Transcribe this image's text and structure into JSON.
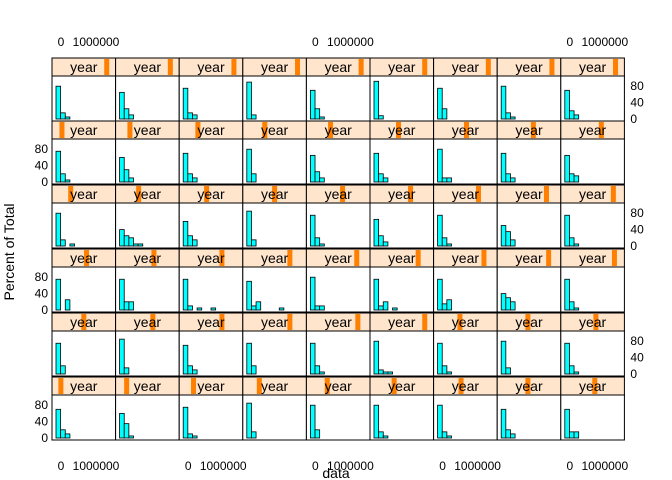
{
  "chart_data": {
    "type": "bar",
    "layout": {
      "columns": 9,
      "rows": 6
    },
    "xlabel": "data",
    "ylabel": "Percent of Total",
    "strip_label": "year",
    "x_tick_labels": [
      "0",
      "1000000"
    ],
    "y_tick_labels": [
      "0",
      "40",
      "80"
    ],
    "ylim": [
      0,
      100
    ],
    "colors": {
      "bar_fill": "#00ffff",
      "strip_bg": "#ffe5cc",
      "strip_indicator": "#ff7f00",
      "frame": "#000000"
    },
    "panels": [
      {
        "row": 0,
        "col": 0,
        "level": 0.92,
        "values": [
          80,
          15,
          5,
          0,
          0,
          0,
          0,
          0
        ]
      },
      {
        "row": 0,
        "col": 1,
        "level": 0.92,
        "values": [
          65,
          25,
          10,
          0,
          0,
          0,
          0,
          0
        ]
      },
      {
        "row": 0,
        "col": 2,
        "level": 0.92,
        "values": [
          75,
          15,
          10,
          0,
          0,
          0,
          0,
          0
        ]
      },
      {
        "row": 0,
        "col": 3,
        "level": 0.92,
        "values": [
          90,
          10,
          0,
          0,
          0,
          0,
          0,
          0
        ]
      },
      {
        "row": 0,
        "col": 4,
        "level": 0.92,
        "values": [
          70,
          25,
          5,
          0,
          0,
          0,
          0,
          0
        ]
      },
      {
        "row": 0,
        "col": 5,
        "level": 0.92,
        "values": [
          92,
          8,
          0,
          0,
          0,
          0,
          0,
          0
        ]
      },
      {
        "row": 0,
        "col": 6,
        "level": 0.92,
        "values": [
          75,
          25,
          0,
          0,
          0,
          0,
          0,
          0
        ]
      },
      {
        "row": 0,
        "col": 7,
        "level": 0.92,
        "values": [
          80,
          15,
          5,
          0,
          0,
          0,
          0,
          0
        ]
      },
      {
        "row": 0,
        "col": 8,
        "level": 0.92,
        "values": [
          70,
          20,
          10,
          0,
          0,
          0,
          0,
          0
        ]
      },
      {
        "row": 1,
        "col": 0,
        "level": 0.1,
        "values": [
          75,
          20,
          5,
          0,
          0,
          0,
          0,
          0
        ]
      },
      {
        "row": 1,
        "col": 1,
        "level": 0.18,
        "values": [
          60,
          30,
          10,
          0,
          0,
          0,
          0,
          0
        ]
      },
      {
        "row": 1,
        "col": 2,
        "level": 0.26,
        "values": [
          70,
          20,
          10,
          0,
          0,
          0,
          0,
          0
        ]
      },
      {
        "row": 1,
        "col": 3,
        "level": 0.32,
        "values": [
          80,
          20,
          0,
          0,
          0,
          0,
          0,
          0
        ]
      },
      {
        "row": 1,
        "col": 4,
        "level": 0.36,
        "values": [
          65,
          25,
          10,
          0,
          0,
          0,
          0,
          0
        ]
      },
      {
        "row": 1,
        "col": 5,
        "level": 0.44,
        "values": [
          70,
          20,
          10,
          0,
          0,
          0,
          0,
          0
        ]
      },
      {
        "row": 1,
        "col": 6,
        "level": 0.52,
        "values": [
          80,
          10,
          10,
          0,
          0,
          0,
          0,
          0
        ]
      },
      {
        "row": 1,
        "col": 7,
        "level": 0.58,
        "values": [
          70,
          20,
          10,
          0,
          0,
          0,
          0,
          0
        ]
      },
      {
        "row": 1,
        "col": 8,
        "level": 0.66,
        "values": [
          65,
          20,
          15,
          0,
          0,
          0,
          0,
          0
        ]
      },
      {
        "row": 2,
        "col": 0,
        "level": 0.26,
        "values": [
          80,
          15,
          0,
          5,
          0,
          0,
          0,
          0
        ]
      },
      {
        "row": 2,
        "col": 1,
        "level": 0.34,
        "values": [
          40,
          25,
          20,
          5,
          5,
          0,
          0,
          0
        ]
      },
      {
        "row": 2,
        "col": 2,
        "level": 0.42,
        "values": [
          60,
          25,
          15,
          0,
          0,
          0,
          0,
          0
        ]
      },
      {
        "row": 2,
        "col": 3,
        "level": 0.5,
        "values": [
          85,
          15,
          0,
          0,
          0,
          0,
          0,
          0
        ]
      },
      {
        "row": 2,
        "col": 4,
        "level": 0.58,
        "values": [
          75,
          20,
          5,
          0,
          0,
          0,
          0,
          0
        ]
      },
      {
        "row": 2,
        "col": 5,
        "level": 0.66,
        "values": [
          65,
          25,
          10,
          0,
          0,
          0,
          0,
          0
        ]
      },
      {
        "row": 2,
        "col": 6,
        "level": 0.74,
        "values": [
          75,
          20,
          5,
          0,
          0,
          0,
          0,
          0
        ]
      },
      {
        "row": 2,
        "col": 7,
        "level": 0.82,
        "values": [
          50,
          35,
          15,
          0,
          0,
          0,
          0,
          0
        ]
      },
      {
        "row": 2,
        "col": 8,
        "level": 0.88,
        "values": [
          75,
          20,
          5,
          0,
          0,
          0,
          0,
          0
        ]
      },
      {
        "row": 3,
        "col": 0,
        "level": 0.55,
        "values": [
          75,
          0,
          25,
          0,
          0,
          0,
          0,
          0
        ]
      },
      {
        "row": 3,
        "col": 1,
        "level": 0.62,
        "values": [
          75,
          20,
          20,
          0,
          0,
          0,
          0,
          0
        ]
      },
      {
        "row": 3,
        "col": 2,
        "level": 0.7,
        "values": [
          75,
          10,
          0,
          5,
          0,
          0,
          5,
          0
        ]
      },
      {
        "row": 3,
        "col": 3,
        "level": 0.78,
        "values": [
          70,
          10,
          20,
          0,
          0,
          0,
          0,
          5
        ]
      },
      {
        "row": 3,
        "col": 4,
        "level": 0.84,
        "values": [
          80,
          10,
          10,
          0,
          0,
          0,
          0,
          0
        ]
      },
      {
        "row": 3,
        "col": 5,
        "level": 0.8,
        "values": [
          75,
          10,
          20,
          0,
          5,
          0,
          0,
          0
        ]
      },
      {
        "row": 3,
        "col": 6,
        "level": 0.84,
        "values": [
          75,
          15,
          25,
          0,
          0,
          0,
          0,
          0
        ]
      },
      {
        "row": 3,
        "col": 7,
        "level": 0.86,
        "values": [
          40,
          30,
          20,
          0,
          0,
          0,
          0,
          0
        ]
      },
      {
        "row": 3,
        "col": 8,
        "level": 0.9,
        "values": [
          75,
          20,
          5,
          0,
          0,
          0,
          0,
          0
        ]
      },
      {
        "row": 4,
        "col": 0,
        "level": 0.5,
        "values": [
          75,
          20,
          0,
          0,
          0,
          0,
          0,
          0
        ]
      },
      {
        "row": 4,
        "col": 1,
        "level": 0.6,
        "values": [
          85,
          15,
          0,
          0,
          0,
          0,
          0,
          0
        ]
      },
      {
        "row": 4,
        "col": 2,
        "level": 0.7,
        "values": [
          70,
          20,
          10,
          0,
          0,
          0,
          0,
          0
        ]
      },
      {
        "row": 4,
        "col": 3,
        "level": 0.78,
        "values": [
          75,
          20,
          0,
          0,
          0,
          0,
          0,
          0
        ]
      },
      {
        "row": 4,
        "col": 4,
        "level": 0.86,
        "values": [
          75,
          20,
          5,
          0,
          0,
          0,
          0,
          0
        ]
      },
      {
        "row": 4,
        "col": 5,
        "level": 0.92,
        "values": [
          80,
          10,
          5,
          5,
          0,
          0,
          0,
          0
        ]
      },
      {
        "row": 4,
        "col": 6,
        "level": 0.4,
        "values": [
          75,
          20,
          5,
          0,
          0,
          0,
          0,
          0
        ]
      },
      {
        "row": 4,
        "col": 7,
        "level": 0.48,
        "values": [
          80,
          15,
          0,
          0,
          0,
          0,
          0,
          0
        ]
      },
      {
        "row": 4,
        "col": 8,
        "level": 0.56,
        "values": [
          75,
          20,
          5,
          0,
          0,
          0,
          0,
          0
        ]
      },
      {
        "row": 5,
        "col": 0,
        "level": 0.08,
        "values": [
          70,
          20,
          10,
          0,
          0,
          0,
          0,
          0
        ]
      },
      {
        "row": 5,
        "col": 1,
        "level": 0.12,
        "values": [
          60,
          35,
          5,
          0,
          0,
          0,
          0,
          0
        ]
      },
      {
        "row": 5,
        "col": 2,
        "level": 0.18,
        "values": [
          75,
          10,
          5,
          0,
          0,
          0,
          0,
          0
        ]
      },
      {
        "row": 5,
        "col": 3,
        "level": 0.22,
        "values": [
          85,
          15,
          0,
          0,
          0,
          0,
          0,
          0
        ]
      },
      {
        "row": 5,
        "col": 4,
        "level": 0.3,
        "values": [
          80,
          20,
          0,
          0,
          0,
          0,
          0,
          0
        ]
      },
      {
        "row": 5,
        "col": 5,
        "level": 0.36,
        "values": [
          80,
          15,
          5,
          0,
          0,
          0,
          0,
          0
        ]
      },
      {
        "row": 5,
        "col": 6,
        "level": 0.42,
        "values": [
          80,
          15,
          5,
          0,
          0,
          0,
          0,
          0
        ]
      },
      {
        "row": 5,
        "col": 7,
        "level": 0.48,
        "values": [
          70,
          20,
          10,
          0,
          0,
          0,
          0,
          0
        ]
      },
      {
        "row": 5,
        "col": 8,
        "level": 0.54,
        "values": [
          70,
          15,
          15,
          0,
          0,
          0,
          0,
          0
        ]
      }
    ]
  }
}
